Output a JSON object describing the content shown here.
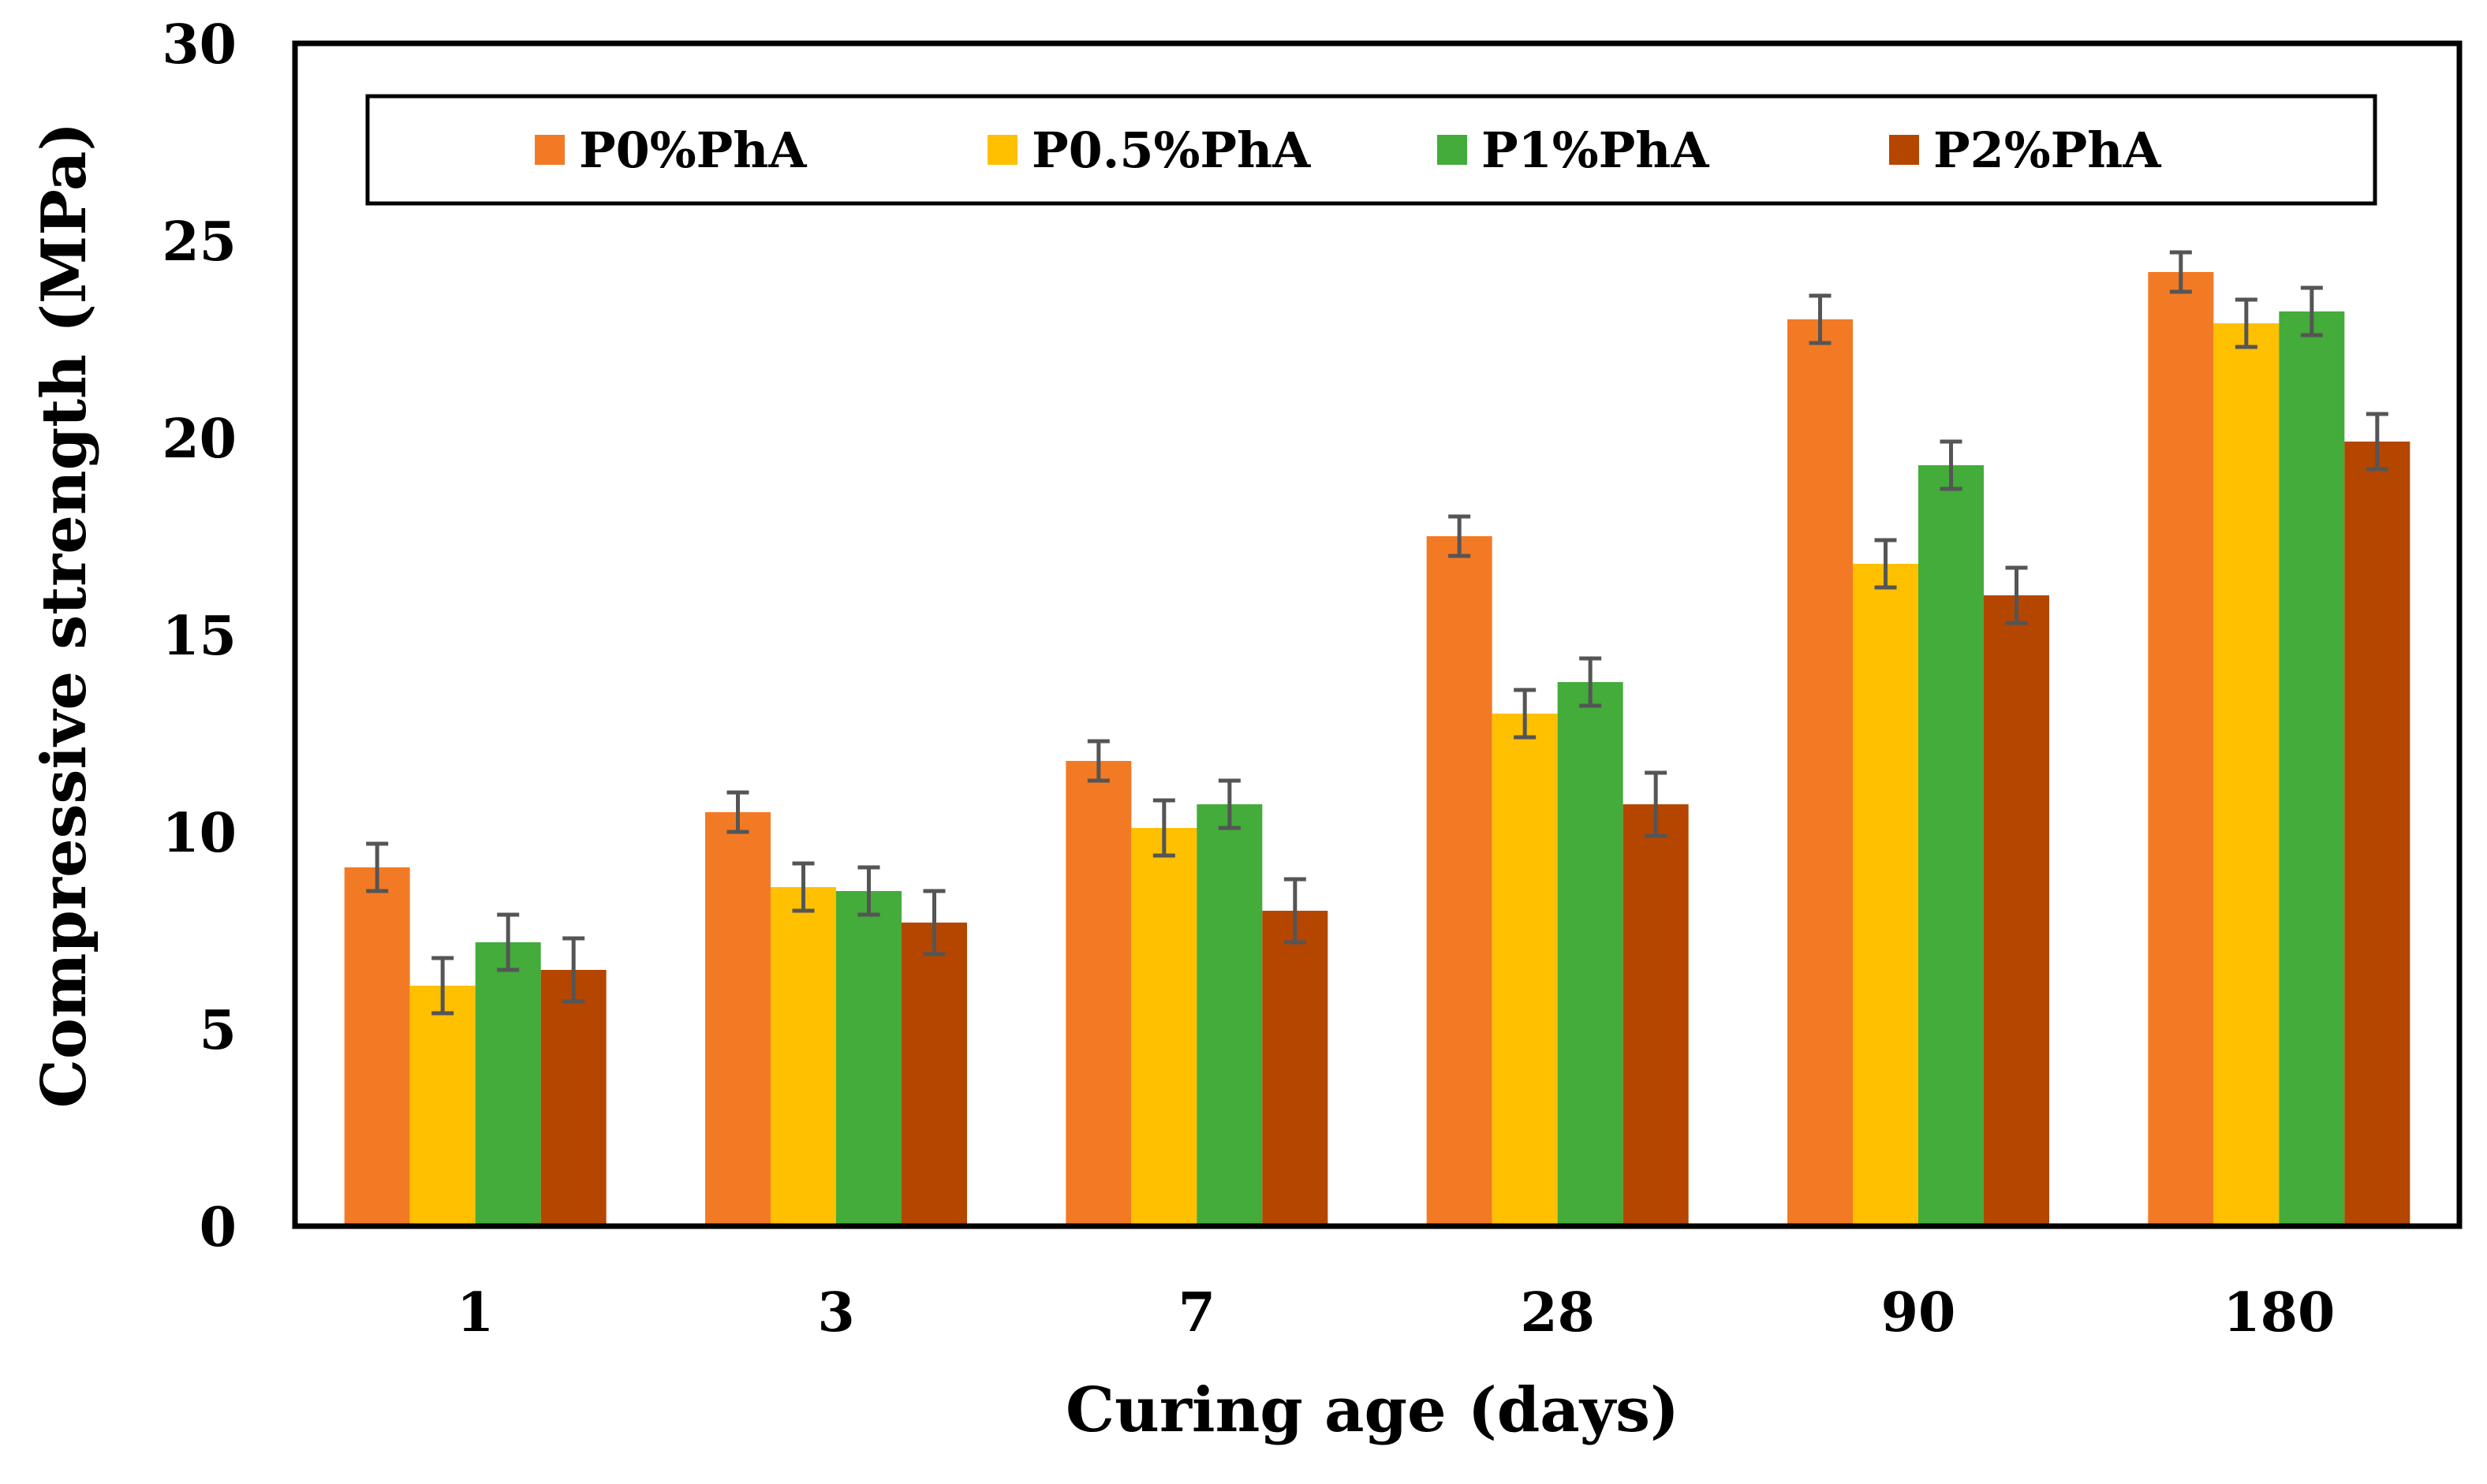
{
  "chart_data": {
    "type": "bar",
    "title": "",
    "xlabel": "Curing age (days)",
    "ylabel": "Compressive strength (MPa)",
    "categories": [
      "1",
      "3",
      "7",
      "28",
      "90",
      "180"
    ],
    "ylim": [
      0,
      30
    ],
    "yticks": [
      0,
      5,
      10,
      15,
      20,
      25,
      30
    ],
    "grid": false,
    "legend_position": "top",
    "series": [
      {
        "name": "P0%PhA",
        "color": "#F37A24",
        "values": [
          9.1,
          10.5,
          11.8,
          17.5,
          23.0,
          24.2
        ],
        "errors": [
          0.6,
          0.5,
          0.5,
          0.5,
          0.6,
          0.5
        ]
      },
      {
        "name": "P0.5%PhA",
        "color": "#FFC000",
        "values": [
          6.1,
          8.6,
          10.1,
          13.0,
          16.8,
          22.9
        ],
        "errors": [
          0.7,
          0.6,
          0.7,
          0.6,
          0.6,
          0.6
        ]
      },
      {
        "name": "P1%PhA",
        "color": "#43AC3A",
        "values": [
          7.2,
          8.5,
          10.7,
          13.8,
          19.3,
          23.2
        ],
        "errors": [
          0.7,
          0.6,
          0.6,
          0.6,
          0.6,
          0.6
        ]
      },
      {
        "name": "P2%PhA",
        "color": "#B54600",
        "values": [
          6.5,
          7.7,
          8.0,
          10.7,
          16.0,
          19.9
        ],
        "errors": [
          0.8,
          0.8,
          0.8,
          0.8,
          0.7,
          0.7
        ]
      }
    ]
  }
}
